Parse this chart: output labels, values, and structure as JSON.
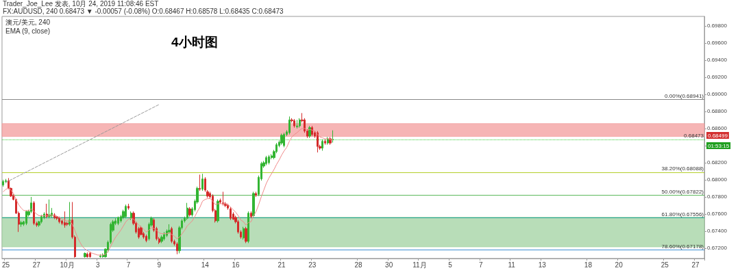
{
  "chart_data": {
    "type": "candlestick",
    "title": "4小时图",
    "annotations": [
      "Trader_Joe_Lee 发表, 10月 24, 2019 11:08:46 EST",
      "FX:AUDUSD, 240 0.68473 ▼ -0.00057 (-0.08%) O:0.68467 H:0.68578 L:0.68435 C:0.68473",
      "澳元/美元, 240",
      "EMA (9, close)",
      "01:53:15",
      "0.68499"
    ],
    "categories": [
      null,
      "25",
      null,
      null,
      null,
      null,
      null,
      null,
      null,
      null,
      null,
      null,
      null,
      "27",
      null,
      null,
      null,
      null,
      null,
      null,
      null,
      null,
      null,
      null,
      null,
      "10月",
      null,
      null,
      null,
      null,
      null,
      null,
      null,
      null,
      null,
      null,
      null,
      "3",
      null,
      null,
      null,
      null,
      null,
      null,
      null,
      null,
      null,
      null,
      null,
      "7",
      null,
      null,
      null,
      null,
      null,
      null,
      null,
      null,
      null,
      null,
      null,
      "9",
      null,
      null,
      null,
      null,
      null,
      null,
      null,
      null,
      null,
      null,
      null,
      null,
      null,
      null,
      null,
      null,
      null,
      "14",
      null,
      null,
      null,
      null,
      null,
      null,
      null,
      null,
      null,
      null,
      null,
      "16",
      null,
      null,
      null,
      null,
      null,
      null,
      null,
      null,
      null,
      null,
      null,
      null,
      null,
      null,
      null,
      null,
      null,
      "21",
      null,
      null,
      null,
      null,
      null,
      null,
      null,
      null,
      null,
      null,
      null,
      "23",
      null,
      null,
      null,
      null,
      null,
      null,
      null,
      null,
      null,
      null,
      null,
      null,
      null,
      null,
      null,
      null,
      null,
      "28",
      null,
      null,
      null,
      null,
      null,
      null,
      null,
      null,
      null,
      null,
      null,
      "30",
      null,
      null,
      null,
      null,
      null,
      null,
      null,
      null,
      null,
      null,
      null,
      "11月",
      null,
      null,
      null,
      null,
      null,
      null,
      null,
      null,
      null,
      null,
      null,
      "5",
      null,
      null,
      null,
      null,
      null,
      null,
      null,
      null,
      null,
      null,
      null,
      "7",
      null,
      null,
      null,
      null,
      null,
      null,
      null,
      null,
      null,
      null,
      null,
      "11",
      null,
      null,
      null,
      null,
      null,
      null,
      null,
      null,
      null,
      null,
      null,
      "13",
      null,
      null,
      null,
      null,
      null,
      null,
      null,
      null,
      null,
      null,
      null,
      null,
      null,
      null,
      null,
      null,
      null,
      "18",
      null,
      null,
      null,
      null,
      null,
      null,
      null,
      null,
      null,
      null,
      null,
      "20",
      null,
      null,
      null,
      null,
      null,
      null,
      null,
      null,
      null,
      null,
      null,
      null,
      null,
      null,
      null,
      null,
      null,
      "25",
      null,
      null,
      null,
      null,
      null,
      null,
      null,
      null,
      null,
      null,
      null,
      "27",
      null,
      null,
      null
    ],
    "ylim": [
      0.6708,
      0.6991
    ],
    "yticks": [
      {
        "value": 0.672,
        "label": "0.67200"
      },
      {
        "value": 0.674,
        "label": "0.67400"
      },
      {
        "value": 0.676,
        "label": "0.67600"
      },
      {
        "value": 0.678,
        "label": "0.67800"
      },
      {
        "value": 0.68,
        "label": "0.68000"
      },
      {
        "value": 0.682,
        "label": "0.68200"
      },
      {
        "value": 0.684,
        "label": null
      },
      {
        "value": 0.686,
        "label": "0.68600"
      },
      {
        "value": 0.688,
        "label": "0.68800"
      },
      {
        "value": 0.69,
        "label": "0.69000"
      },
      {
        "value": 0.692,
        "label": "0.69200"
      },
      {
        "value": 0.694,
        "label": "0.69400"
      },
      {
        "value": 0.696,
        "label": "0.69600"
      },
      {
        "value": 0.698,
        "label": "0.69800"
      }
    ],
    "ref_lines": [
      {
        "axis": "y",
        "value": 0.68941,
        "label": "0.00%(0.68941)",
        "color": "#888888"
      },
      {
        "axis": "y",
        "value": 0.68088,
        "label": "38.20%(0.68088)",
        "color": "#b4cf2a"
      },
      {
        "axis": "y",
        "value": 0.67822,
        "label": "50.00%(0.67822)",
        "color": "#5cb85c"
      },
      {
        "axis": "y",
        "value": 0.67556,
        "label": "61.80%(0.67556)",
        "color": "#26a69a"
      },
      {
        "axis": "y",
        "value": 0.67178,
        "label": "78.60%(0.67178)",
        "color": "#3d8fd1"
      },
      {
        "axis": "y",
        "value": 0.68473,
        "label": "0.68473",
        "color": "#33cc33",
        "line_style": "dotted"
      }
    ],
    "bands": [
      {
        "axis": "y",
        "from": 0.68507,
        "to": 0.68657,
        "color": "#f4a3a3"
      },
      {
        "axis": "y",
        "from": 0.67216,
        "to": 0.67562,
        "color": "#a6d4a6"
      }
    ],
    "series": [
      {
        "ohlc": [
          [
            0.6794,
            0.68,
            0.6792,
            0.6798
          ],
          [
            0.6798,
            0.6801,
            0.6796,
            0.6799
          ],
          [
            0.6799,
            0.6802,
            0.6789,
            0.679
          ],
          [
            0.679,
            0.6791,
            0.678,
            0.6781
          ],
          [
            0.6781,
            0.6783,
            0.6776,
            0.6777
          ],
          [
            0.6777,
            0.6778,
            0.676,
            0.6761
          ],
          [
            0.6761,
            0.6763,
            0.6739,
            0.6748
          ],
          [
            0.6748,
            0.6752,
            0.6745,
            0.675
          ],
          [
            0.6748,
            0.6752,
            0.6746,
            0.6751
          ],
          [
            0.6749,
            0.6764,
            0.6747,
            0.6763
          ],
          [
            0.6759,
            0.6765,
            0.6757,
            0.6763
          ],
          [
            0.6763,
            0.678,
            0.6761,
            0.6773
          ],
          [
            0.6773,
            0.6775,
            0.6747,
            0.6749
          ],
          [
            0.6749,
            0.6751,
            0.6745,
            0.6747
          ],
          [
            0.6747,
            0.6752,
            0.6745,
            0.6751
          ],
          [
            0.6751,
            0.6759,
            0.6749,
            0.6757
          ],
          [
            0.6756,
            0.6762,
            0.6754,
            0.676
          ],
          [
            0.676,
            0.6772,
            0.6755,
            0.6757
          ],
          [
            0.6757,
            0.6777,
            0.6755,
            0.6759
          ],
          [
            0.6758,
            0.6767,
            0.6756,
            0.6761
          ],
          [
            0.6759,
            0.6761,
            0.6754,
            0.6756
          ],
          [
            0.6757,
            0.6758,
            0.6753,
            0.6755
          ],
          [
            0.6755,
            0.6757,
            0.6749,
            0.6751
          ],
          [
            0.6752,
            0.6753,
            0.6747,
            0.6749
          ],
          [
            0.675,
            0.6763,
            0.6744,
            0.6747
          ],
          [
            0.6749,
            0.6751,
            0.6746,
            0.6748
          ],
          [
            0.6748,
            0.6774,
            0.6746,
            0.6753
          ],
          [
            0.6753,
            0.6774,
            0.6731,
            0.6733
          ],
          [
            0.6733,
            0.6735,
            0.6709,
            0.671
          ],
          null,
          null,
          null,
          [
            0.671,
            0.6715,
            0.6709,
            0.6714
          ],
          [
            0.6713,
            0.6715,
            0.6709,
            0.671
          ],
          [
            0.6714,
            0.6716,
            0.6709,
            0.671
          ],
          null,
          null,
          null,
          [
            0.671,
            0.6713,
            0.6709,
            0.6711
          ],
          [
            0.671,
            0.6714,
            0.6709,
            0.6712
          ],
          [
            0.671,
            0.672,
            0.6709,
            0.6719
          ],
          [
            0.6718,
            0.6729,
            0.6715,
            0.6727
          ],
          [
            0.6727,
            0.675,
            0.6725,
            0.6748
          ],
          [
            0.6741,
            0.6753,
            0.6739,
            0.6751
          ],
          [
            0.6749,
            0.6755,
            0.6747,
            0.6752
          ],
          [
            0.6749,
            0.6757,
            0.6747,
            0.6756
          ],
          [
            0.6752,
            0.6759,
            0.675,
            0.6757
          ],
          [
            0.6756,
            0.6765,
            0.6754,
            0.6763
          ],
          [
            0.6757,
            0.6771,
            0.6755,
            0.6769
          ],
          [
            0.6769,
            0.6772,
            0.6765,
            0.6767
          ],
          [
            0.6755,
            0.6763,
            0.6753,
            0.6761
          ],
          [
            0.6761,
            0.6763,
            0.6747,
            0.6749
          ],
          [
            0.6749,
            0.6751,
            0.6737,
            0.6739
          ],
          [
            0.6743,
            0.6745,
            0.6731,
            0.6733
          ],
          [
            0.6744,
            0.6746,
            0.6735,
            0.6736
          ],
          [
            0.6737,
            0.6739,
            0.6731,
            0.6733
          ],
          [
            0.6734,
            0.6736,
            0.6727,
            0.6729
          ],
          [
            0.6731,
            0.675,
            0.6729,
            0.6748
          ],
          [
            0.6747,
            0.6757,
            0.6745,
            0.6755
          ],
          [
            0.6753,
            0.6755,
            0.6739,
            0.6741
          ],
          [
            0.6743,
            0.6745,
            0.6729,
            0.6731
          ],
          [
            0.6731,
            0.6733,
            0.6725,
            0.6727
          ],
          [
            0.6728,
            0.6735,
            0.6726,
            0.6733
          ],
          [
            0.6731,
            0.6739,
            0.6729,
            0.6736
          ],
          [
            0.6735,
            0.6742,
            0.6733,
            0.674
          ],
          [
            0.6739,
            0.6748,
            0.6737,
            0.6741
          ],
          [
            0.6743,
            0.6745,
            0.6726,
            0.6728
          ],
          [
            0.6728,
            0.673,
            0.6723,
            0.6725
          ],
          [
            0.6725,
            0.6727,
            0.6713,
            0.6717
          ],
          [
            0.6717,
            0.6746,
            0.6714,
            0.6744
          ],
          [
            0.6744,
            0.6754,
            0.6742,
            0.6752
          ],
          [
            0.6752,
            0.6757,
            0.675,
            0.6755
          ],
          [
            0.6755,
            0.6773,
            0.6753,
            0.6767
          ],
          [
            0.6766,
            0.6768,
            0.6757,
            0.6759
          ],
          [
            0.6759,
            0.6768,
            0.6757,
            0.6766
          ],
          [
            0.6765,
            0.6777,
            0.6763,
            0.6775
          ],
          [
            0.6774,
            0.6792,
            0.6772,
            0.679
          ],
          [
            0.679,
            0.6806,
            0.6787,
            0.6789
          ],
          [
            0.6789,
            0.6807,
            0.6787,
            0.6801
          ],
          [
            0.6801,
            0.6803,
            0.6786,
            0.6788
          ],
          [
            0.6786,
            0.6788,
            0.6779,
            0.6781
          ],
          [
            0.6784,
            0.6786,
            0.6778,
            0.678
          ],
          [
            0.6781,
            0.6783,
            0.6762,
            0.6764
          ],
          [
            0.6764,
            0.6766,
            0.675,
            0.6752
          ],
          [
            0.6752,
            0.6777,
            0.675,
            0.6775
          ],
          [
            0.6776,
            0.6778,
            0.6772,
            0.6774
          ],
          [
            0.6773,
            0.6786,
            0.677,
            0.6772
          ],
          [
            0.6772,
            0.6774,
            0.6768,
            0.677
          ],
          [
            0.677,
            0.6772,
            0.6765,
            0.6767
          ],
          [
            0.6766,
            0.6768,
            0.6753,
            0.6755
          ],
          [
            0.676,
            0.6762,
            0.6753,
            0.6754
          ],
          [
            0.6756,
            0.6758,
            0.6749,
            0.6751
          ],
          [
            0.6751,
            0.6753,
            0.6737,
            0.6739
          ],
          [
            0.6739,
            0.6741,
            0.6731,
            0.6733
          ],
          [
            0.6732,
            0.6745,
            0.673,
            0.6743
          ],
          [
            0.6743,
            0.6745,
            0.6726,
            0.6728
          ],
          [
            0.6728,
            0.6763,
            0.6726,
            0.6761
          ],
          [
            0.6761,
            0.6763,
            0.6755,
            0.6757
          ],
          [
            0.6758,
            0.6786,
            0.6756,
            0.6784
          ],
          [
            0.6784,
            0.6786,
            0.678,
            0.6782
          ],
          [
            0.6783,
            0.6805,
            0.6781,
            0.6803
          ],
          [
            0.6801,
            0.6821,
            0.6799,
            0.6819
          ],
          [
            0.6816,
            0.6822,
            0.6814,
            0.682
          ],
          [
            0.6819,
            0.6828,
            0.6817,
            0.6826
          ],
          [
            0.682,
            0.6829,
            0.6818,
            0.6827
          ],
          [
            0.6826,
            0.683,
            0.6824,
            0.6828
          ],
          [
            0.6826,
            0.6835,
            0.6824,
            0.6833
          ],
          [
            0.6833,
            0.6843,
            0.6831,
            0.6841
          ],
          [
            0.684,
            0.6846,
            0.6838,
            0.6844
          ],
          [
            0.6843,
            0.6854,
            0.6841,
            0.6852
          ],
          [
            0.684,
            0.6855,
            0.6838,
            0.6853
          ],
          [
            0.6853,
            0.6858,
            0.6851,
            0.6856
          ],
          [
            0.6855,
            0.6874,
            0.6853,
            0.687
          ],
          [
            0.687,
            0.6872,
            0.6867,
            0.6869
          ],
          [
            0.6869,
            0.6871,
            0.6861,
            0.6863
          ],
          [
            0.6862,
            0.687,
            0.686,
            0.6863
          ],
          [
            0.6863,
            0.6872,
            0.6861,
            0.687
          ],
          [
            0.687,
            0.6878,
            0.6867,
            0.6869
          ],
          [
            0.687,
            0.6872,
            0.6855,
            0.6857
          ],
          [
            0.6857,
            0.6859,
            0.6849,
            0.6851
          ],
          [
            0.6851,
            0.6863,
            0.6849,
            0.6861
          ],
          [
            0.6861,
            0.6863,
            0.6851,
            0.6853
          ],
          [
            0.6855,
            0.6857,
            0.6849,
            0.6851
          ],
          [
            0.6855,
            0.6857,
            0.6832,
            0.6839
          ],
          [
            0.6839,
            0.6841,
            0.6835,
            0.6837
          ],
          [
            0.6837,
            0.6847,
            0.6834,
            0.6845
          ],
          [
            0.6845,
            0.6847,
            0.6841,
            0.6843
          ],
          [
            0.6843,
            0.685,
            0.6841,
            0.6848
          ],
          [
            0.6848,
            0.685,
            0.6841,
            0.6843
          ],
          [
            0.68467,
            0.68578,
            0.68435,
            0.68473
          ],
          null,
          null,
          null,
          null,
          null,
          null,
          null,
          null,
          null,
          null,
          null,
          null,
          null,
          null,
          null,
          null,
          null,
          null,
          null,
          null,
          null,
          null,
          null,
          null,
          null,
          null,
          null,
          null,
          null,
          null,
          null,
          null,
          null,
          null,
          null,
          null,
          null,
          null,
          null,
          null,
          null,
          null,
          null,
          null,
          null,
          null,
          null,
          null,
          null,
          null,
          null,
          null,
          null,
          null,
          null,
          null,
          null,
          null,
          null,
          null,
          null,
          null,
          null,
          null,
          null,
          null,
          null,
          null,
          null,
          null,
          null,
          null,
          null,
          null,
          null,
          null,
          null,
          null,
          null,
          null,
          null,
          null,
          null,
          null,
          null,
          null,
          null,
          null,
          null,
          null,
          null,
          null,
          null,
          null,
          null,
          null,
          null,
          null,
          null,
          null,
          null,
          null,
          null,
          null,
          null,
          null,
          null,
          null,
          null,
          null,
          null,
          null,
          null,
          null,
          null,
          null,
          null,
          null,
          null,
          null,
          null,
          null,
          null,
          null,
          null,
          null,
          null,
          null,
          null,
          null,
          null,
          null,
          null,
          null,
          null,
          null,
          null,
          null,
          null,
          null,
          null,
          null,
          null,
          null,
          null
        ],
        "colors": [
          "#33b533",
          "#33b533",
          "#d42a2a",
          "#d42a2a",
          "#d42a2a",
          "#d42a2a",
          "#d42a2a",
          "#33b533",
          "#33b533",
          "#33b533",
          "#33b533",
          "#33b533",
          "#d42a2a",
          "#d42a2a",
          "#33b533",
          "#33b533",
          "#33b533",
          "#d42a2a",
          "#33b533",
          "#33b533",
          "#d42a2a",
          "#d42a2a",
          "#d42a2a",
          "#d42a2a",
          "#d42a2a",
          "#d42a2a",
          "#33b533",
          "#d42a2a",
          "#d42a2a",
          null,
          null,
          null,
          "#33b533",
          "#d42a2a",
          "#d42a2a",
          null,
          null,
          null,
          "#33b533",
          "#33b533",
          "#33b533",
          "#33b533",
          "#33b533",
          "#33b533",
          "#33b533",
          "#33b533",
          "#33b533",
          "#33b533",
          "#33b533",
          "#d42a2a",
          "#33b533",
          "#d42a2a",
          "#d42a2a",
          "#d42a2a",
          "#d42a2a",
          "#d42a2a",
          "#d42a2a",
          "#33b533",
          "#33b533",
          "#d42a2a",
          "#d42a2a",
          "#d42a2a",
          "#33b533",
          "#33b533",
          "#33b533",
          "#33b533",
          "#d42a2a",
          "#d42a2a",
          "#d42a2a",
          "#33b533",
          "#33b533",
          "#33b533",
          "#33b533",
          "#d42a2a",
          "#33b533",
          "#33b533",
          "#33b533",
          "#d42a2a",
          "#33b533",
          "#d42a2a",
          "#d42a2a",
          "#d42a2a",
          "#d42a2a",
          "#d42a2a",
          "#33b533",
          "#d42a2a",
          "#d42a2a",
          "#d42a2a",
          "#d42a2a",
          "#d42a2a",
          "#d42a2a",
          "#d42a2a",
          "#d42a2a",
          "#d42a2a",
          "#33b533",
          "#d42a2a",
          "#33b533",
          "#d42a2a",
          "#33b533",
          "#d42a2a",
          "#33b533",
          "#33b533",
          "#33b533",
          "#33b533",
          "#33b533",
          "#33b533",
          "#33b533",
          "#33b533",
          "#33b533",
          "#33b533",
          "#33b533",
          "#33b533",
          "#33b533",
          "#d42a2a",
          "#d42a2a",
          "#33b533",
          "#33b533",
          "#d42a2a",
          "#d42a2a",
          "#d42a2a",
          "#33b533",
          "#d42a2a",
          "#d42a2a",
          "#d42a2a",
          "#d42a2a",
          "#33b533",
          "#d42a2a",
          "#33b533",
          "#d42a2a",
          "#33b533",
          null,
          null,
          null,
          null,
          null,
          null,
          null,
          null,
          null,
          null,
          null,
          null,
          null,
          null,
          null,
          null,
          null,
          null,
          null,
          null,
          null,
          null,
          null,
          null,
          null,
          null,
          null,
          null,
          null,
          null,
          null,
          null,
          null,
          null,
          null,
          null,
          null,
          null,
          null,
          null,
          null,
          null,
          null,
          null,
          null,
          null,
          null,
          null,
          null,
          null,
          null,
          null,
          null,
          null,
          null,
          null,
          null,
          null,
          null,
          null,
          null,
          null,
          null,
          null,
          null,
          null,
          null,
          null,
          null,
          null,
          null,
          null,
          null,
          null,
          null,
          null,
          null,
          null,
          null,
          null,
          null,
          null,
          null,
          null,
          null,
          null,
          null,
          null,
          null,
          null,
          null,
          null,
          null,
          null,
          null,
          null,
          null,
          null,
          null,
          null,
          null,
          null,
          null,
          null,
          null,
          null,
          null,
          null,
          null,
          null,
          null,
          null,
          null,
          null,
          null,
          null,
          null,
          null,
          null,
          null,
          null,
          null,
          null,
          null,
          null,
          null,
          null,
          null,
          null,
          null,
          null,
          null,
          null,
          null,
          null,
          null,
          null,
          null,
          null,
          null,
          null,
          null,
          null,
          null,
          null
        ]
      },
      {
        "type": "line",
        "color": "#f08a8a",
        "marker": "none",
        "values": [
          0.6786,
          0.6789,
          0.679,
          0.6788,
          0.6784,
          0.6777,
          0.6771,
          0.6767,
          0.6764,
          0.6764,
          0.6764,
          0.6766,
          0.6763,
          0.676,
          0.6758,
          0.6758,
          0.6758,
          0.6758,
          0.6758,
          0.6759,
          0.6758,
          0.6757,
          0.6756,
          0.6754,
          0.6753,
          0.6752,
          0.6752,
          0.6748,
          0.6741,
          0.6733,
          0.6727,
          0.6722,
          0.6719,
          0.6717,
          0.6715,
          0.6714,
          0.6713,
          0.6712,
          0.6712,
          0.6712,
          0.6713,
          0.6716,
          0.6722,
          0.6728,
          0.6733,
          0.6737,
          0.6741,
          0.6746,
          0.6751,
          0.6754,
          0.6755,
          0.6754,
          0.6751,
          0.6747,
          0.6745,
          0.6742,
          0.6739,
          0.6741,
          0.6744,
          0.6743,
          0.6741,
          0.6738,
          0.6737,
          0.6737,
          0.6737,
          0.6738,
          0.6736,
          0.6734,
          0.6731,
          0.6733,
          0.6737,
          0.6741,
          0.6746,
          0.6749,
          0.6752,
          0.6757,
          0.6763,
          0.6768,
          0.6775,
          0.6777,
          0.6778,
          0.6778,
          0.6775,
          0.6771,
          0.6772,
          0.6772,
          0.6772,
          0.6772,
          0.6771,
          0.6768,
          0.6765,
          0.6762,
          0.6758,
          0.6753,
          0.6751,
          0.6747,
          0.675,
          0.6751,
          0.6758,
          0.6763,
          0.6771,
          0.678,
          0.6788,
          0.6796,
          0.6802,
          0.6807,
          0.6812,
          0.6818,
          0.6823,
          0.6829,
          0.6834,
          0.6838,
          0.6845,
          0.685,
          0.6853,
          0.6855,
          0.6858,
          0.686,
          0.686,
          0.6858,
          0.6859,
          0.6858,
          0.6857,
          0.6853,
          0.685,
          0.6849,
          0.6848,
          0.6848,
          0.6847,
          0.6847,
          null,
          null,
          null,
          null,
          null,
          null,
          null,
          null,
          null,
          null,
          null,
          null,
          null,
          null,
          null,
          null,
          null,
          null,
          null,
          null,
          null,
          null,
          null,
          null,
          null,
          null,
          null,
          null,
          null,
          null,
          null,
          null,
          null,
          null,
          null,
          null,
          null,
          null,
          null,
          null,
          null,
          null,
          null,
          null,
          null,
          null,
          null,
          null,
          null,
          null,
          null,
          null,
          null,
          null,
          null,
          null,
          null,
          null,
          null,
          null,
          null,
          null,
          null,
          null,
          null,
          null,
          null,
          null,
          null,
          null,
          null,
          null,
          null,
          null,
          null,
          null,
          null,
          null,
          null,
          null,
          null,
          null,
          null,
          null,
          null,
          null,
          null,
          null,
          null,
          null,
          null,
          null,
          null,
          null,
          null,
          null,
          null,
          null,
          null,
          null,
          null,
          null,
          null,
          null,
          null,
          null,
          null,
          null,
          null,
          null,
          null,
          null,
          null,
          null,
          null,
          null,
          null,
          null,
          null,
          null,
          null,
          null,
          null,
          null,
          null,
          null,
          null,
          null,
          null,
          null,
          null,
          null,
          null,
          null,
          null,
          null,
          null,
          null,
          null,
          null,
          null,
          null,
          null,
          null,
          null
        ]
      },
      {
        "type": "line",
        "color": "#999999",
        "marker": "none",
        "line_style": "dashed",
        "x": [
          "25",
          "9"
        ],
        "values": [
          0.6797,
          0.6888
        ]
      }
    ]
  }
}
